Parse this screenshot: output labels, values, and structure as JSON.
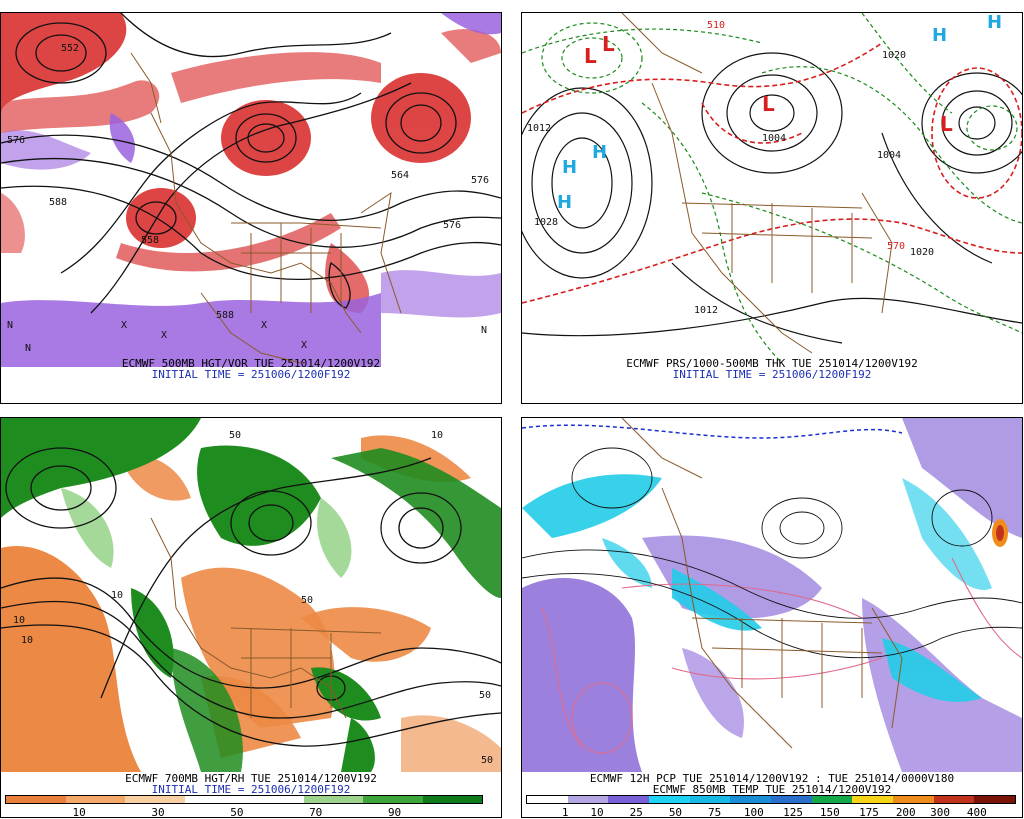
{
  "panels": [
    {
      "id": "tl",
      "caption1": "ECMWF 500MB HGT/VOR TUE 251014/1200V192",
      "caption2": "INITIAL TIME = 251006/1200F192",
      "contour_labels": [
        "576",
        "588",
        "564",
        "558",
        "576",
        "552",
        "576",
        "588"
      ],
      "symbols": [
        "X",
        "X",
        "X",
        "X",
        "N",
        "N",
        "N"
      ]
    },
    {
      "id": "tr",
      "caption1": "ECMWF PRS/1000-500MB THK TUE 251014/1200V192",
      "caption2": "INITIAL TIME = 251006/1200F192",
      "contour_labels": [
        "1028",
        "1012",
        "1004",
        "1020",
        "1012",
        "1004",
        "1020",
        "510",
        "570"
      ],
      "highs": [
        "H",
        "H",
        "H",
        "H",
        "H"
      ],
      "lows": [
        "L",
        "L",
        "L",
        "L"
      ]
    },
    {
      "id": "bl",
      "caption1": "ECMWF 700MB HGT/RH TUE 251014/1200V192",
      "caption2": "INITIAL TIME = 251006/1200F192",
      "legend_ticks": [
        "10",
        "30",
        "50",
        "70",
        "90"
      ],
      "legend_colors": [
        "#e87f3c",
        "#f4a96a",
        "#f9d0a4",
        "#ffffff",
        "#ffffff",
        "#9ed38e",
        "#3da53a",
        "#0f7a1b"
      ],
      "contour_labels": [
        "10",
        "50",
        "10",
        "50",
        "10",
        "50",
        "50",
        "10"
      ]
    },
    {
      "id": "br",
      "caption1": "ECMWF 12H PCP TUE 251014/1200V192 : TUE 251014/0000V180",
      "caption2": "ECMWF 850MB TEMP TUE 251014/1200V192",
      "legend_ticks": [
        "1",
        "10",
        "25",
        "50",
        "75",
        "100",
        "125",
        "150",
        "175",
        "200",
        "300",
        "400"
      ],
      "legend_colors": [
        "#ffffff",
        "#b4a6e3",
        "#7b5fd6",
        "#1fd3f2",
        "#18b9e6",
        "#1a8fd8",
        "#2a6fcc",
        "#15a848",
        "#f5d419",
        "#f08c1d",
        "#c0321b",
        "#7a1408"
      ]
    }
  ],
  "colors": {
    "vort_red": "#d82424",
    "vort_purple": "#9a62de",
    "contour": "#111111",
    "border": "#8a5a2b",
    "thk_red": "#d81f1f",
    "thk_green": "#1b8a1b",
    "high_cyan": "#20a9e0",
    "rh_green": "#1f8c1f",
    "rh_orange": "#ec8a45",
    "pcp_purple": "#8a6ad8",
    "pcp_cyan": "#23cde8",
    "temp_pink": "#e06a8a"
  }
}
